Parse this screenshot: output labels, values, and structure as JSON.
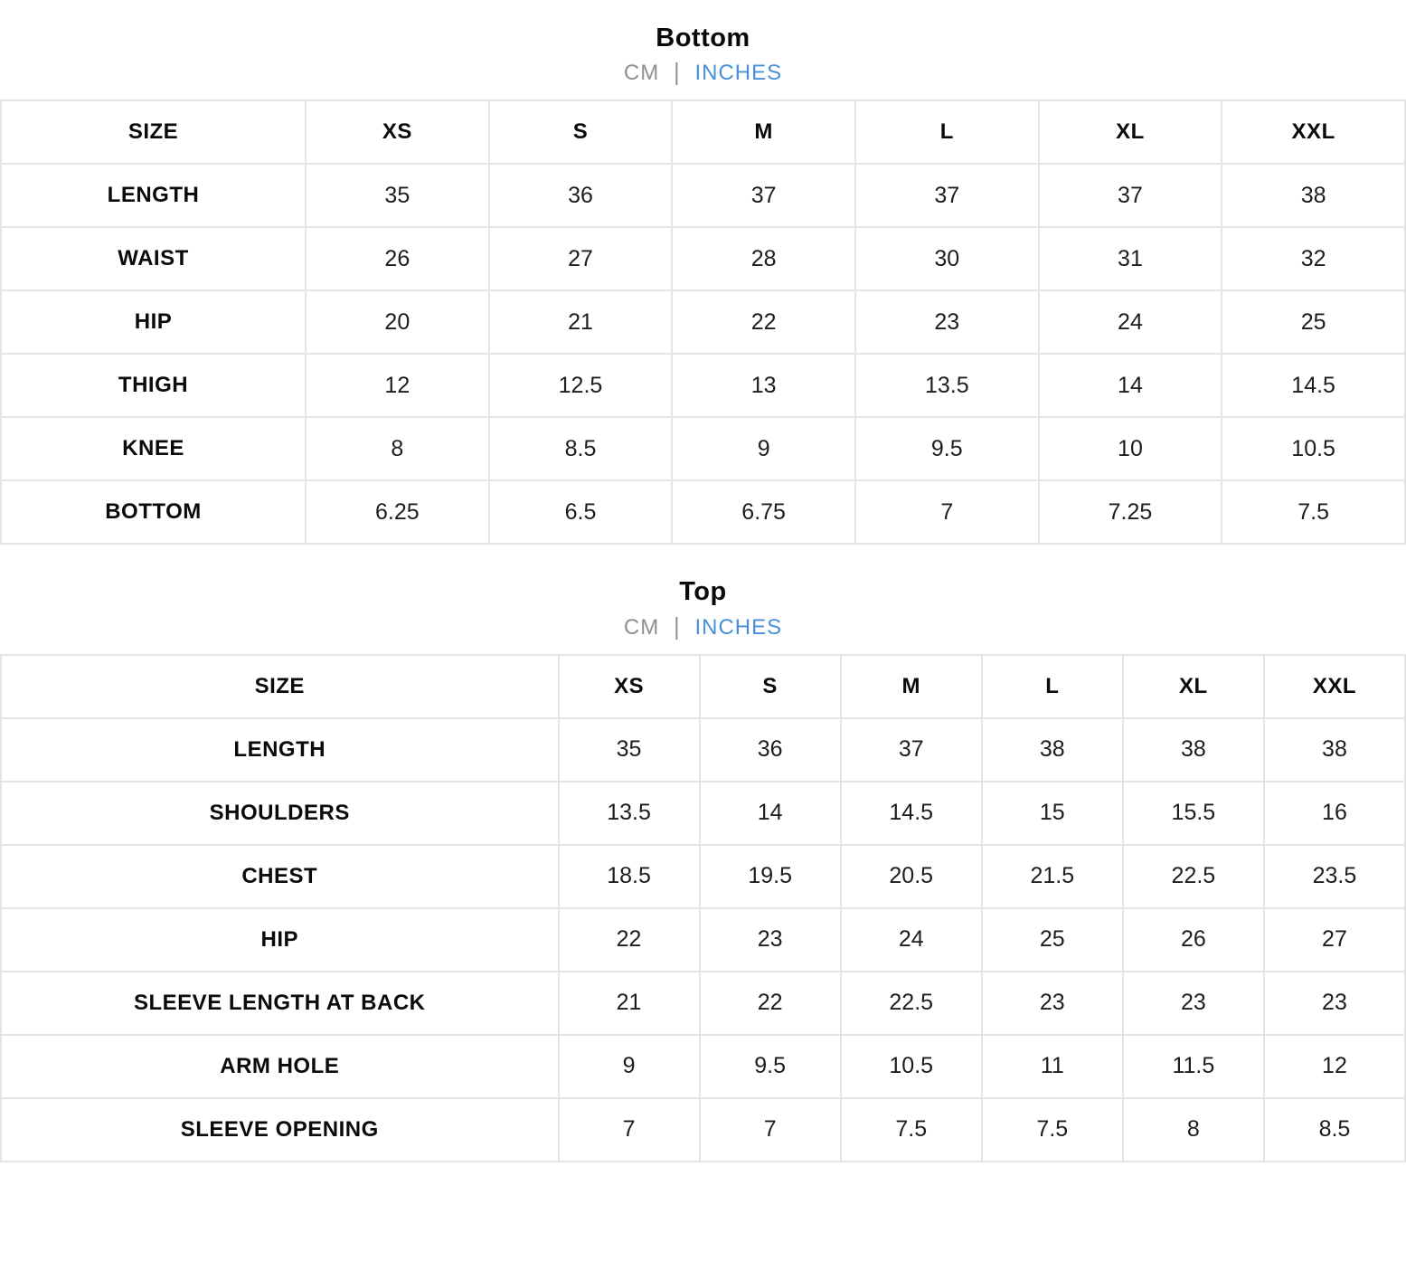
{
  "colors": {
    "accent_inches": "#4a90d9",
    "unit_muted": "#8f8f8f",
    "border": "#e4e4e4",
    "label_text": "#0a0a0a",
    "value_text": "#1d1d1d"
  },
  "tables": [
    {
      "title": "Bottom",
      "units": {
        "cm": "CM",
        "divider": "|",
        "inches": "INCHES",
        "active_unit": "INCHES"
      },
      "columns": [
        "SIZE",
        "XS",
        "S",
        "M",
        "L",
        "XL",
        "XXL"
      ],
      "rows": [
        {
          "label": "LENGTH",
          "values": [
            "35",
            "36",
            "37",
            "37",
            "37",
            "38"
          ]
        },
        {
          "label": "WAIST",
          "values": [
            "26",
            "27",
            "28",
            "30",
            "31",
            "32"
          ]
        },
        {
          "label": "HIP",
          "values": [
            "20",
            "21",
            "22",
            "23",
            "24",
            "25"
          ]
        },
        {
          "label": "THIGH",
          "values": [
            "12",
            "12.5",
            "13",
            "13.5",
            "14",
            "14.5"
          ]
        },
        {
          "label": "KNEE",
          "values": [
            "8",
            "8.5",
            "9",
            "9.5",
            "10",
            "10.5"
          ]
        },
        {
          "label": "BOTTOM",
          "values": [
            "6.25",
            "6.5",
            "6.75",
            "7",
            "7.25",
            "7.5"
          ]
        }
      ]
    },
    {
      "title": "Top",
      "units": {
        "cm": "CM",
        "divider": "|",
        "inches": "INCHES",
        "active_unit": "INCHES"
      },
      "columns": [
        "SIZE",
        "XS",
        "S",
        "M",
        "L",
        "XL",
        "XXL"
      ],
      "rows": [
        {
          "label": "LENGTH",
          "values": [
            "35",
            "36",
            "37",
            "38",
            "38",
            "38"
          ]
        },
        {
          "label": "SHOULDERS",
          "values": [
            "13.5",
            "14",
            "14.5",
            "15",
            "15.5",
            "16"
          ]
        },
        {
          "label": "CHEST",
          "values": [
            "18.5",
            "19.5",
            "20.5",
            "21.5",
            "22.5",
            "23.5"
          ]
        },
        {
          "label": "HIP",
          "values": [
            "22",
            "23",
            "24",
            "25",
            "26",
            "27"
          ]
        },
        {
          "label": "SLEEVE LENGTH AT BACK",
          "values": [
            "21",
            "22",
            "22.5",
            "23",
            "23",
            "23"
          ]
        },
        {
          "label": "ARM HOLE",
          "values": [
            "9",
            "9.5",
            "10.5",
            "11",
            "11.5",
            "12"
          ]
        },
        {
          "label": "SLEEVE OPENING",
          "values": [
            "7",
            "7",
            "7.5",
            "7.5",
            "8",
            "8.5"
          ]
        }
      ]
    }
  ]
}
